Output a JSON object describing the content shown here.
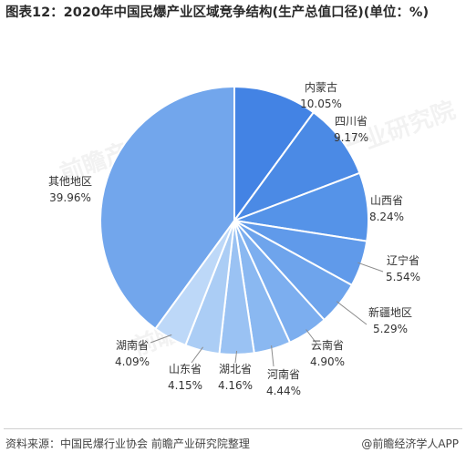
{
  "title": "图表12：2020年中国民爆产业区域竞争结构(生产总值口径)(单位：%)",
  "chart_data": {
    "type": "pie",
    "title": "图表12：2020年中国民爆产业区域竞争结构(生产总值口径)(单位：%)",
    "slices": [
      {
        "label": "内蒙古",
        "value": 10.05,
        "value_label": "10.05%",
        "color": "#4383e4"
      },
      {
        "label": "四川省",
        "value": 9.17,
        "value_label": "9.17%",
        "color": "#4b8ae5"
      },
      {
        "label": "山西省",
        "value": 8.24,
        "value_label": "8.24%",
        "color": "#5593e8"
      },
      {
        "label": "辽宁省",
        "value": 5.54,
        "value_label": "5.54%",
        "color": "#609aea"
      },
      {
        "label": "新疆地区",
        "value": 5.29,
        "value_label": "5.29%",
        "color": "#6ea4ec"
      },
      {
        "label": "云南省",
        "value": 4.9,
        "value_label": "4.90%",
        "color": "#7caeef"
      },
      {
        "label": "河南省",
        "value": 4.44,
        "value_label": "4.44%",
        "color": "#8ab8f1"
      },
      {
        "label": "湖北省",
        "value": 4.16,
        "value_label": "4.16%",
        "color": "#9ac2f3"
      },
      {
        "label": "山东省",
        "value": 4.15,
        "value_label": "4.15%",
        "color": "#abcdf5"
      },
      {
        "label": "湖南省",
        "value": 4.09,
        "value_label": "4.09%",
        "color": "#bdd8f8"
      },
      {
        "label": "其他地区",
        "value": 39.96,
        "value_label": "39.96%",
        "color": "#72a6ec"
      }
    ]
  },
  "source": "资料来源：中国民爆行业协会 前瞻产业研究院整理",
  "brand": "@前瞻经济学人APP",
  "watermark": "前瞻产业研究院"
}
